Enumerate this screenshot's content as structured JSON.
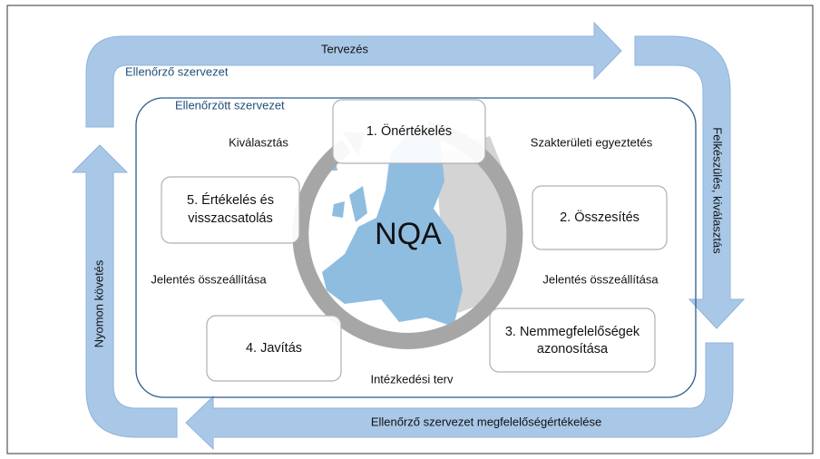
{
  "outer_cycle": {
    "top": "Tervezés",
    "right": "Felkészülés, kiválasztás",
    "bottom": "Ellenőrző szervezet megfelelőségértékelése",
    "left": "Nyomon követés"
  },
  "outer_label": "Ellenőrző szervezet",
  "inner_label": "Ellenőrzött szervezet",
  "center": "NQA",
  "steps": [
    {
      "lines": [
        "1. Önértékelés"
      ]
    },
    {
      "lines": [
        "2. Összesítés"
      ]
    },
    {
      "lines": [
        "3. Nemmegfelelőségek",
        "azonosítása"
      ]
    },
    {
      "lines": [
        "4. Javítás"
      ]
    },
    {
      "lines": [
        "5. Értékelés és",
        "visszacsatolás"
      ]
    }
  ],
  "transitions": [
    "Kiválasztás",
    "Szakterületi egyeztetés",
    "Jelentés összeállítása",
    "Intézkedési terv",
    "Jelentés összeállítása"
  ]
}
